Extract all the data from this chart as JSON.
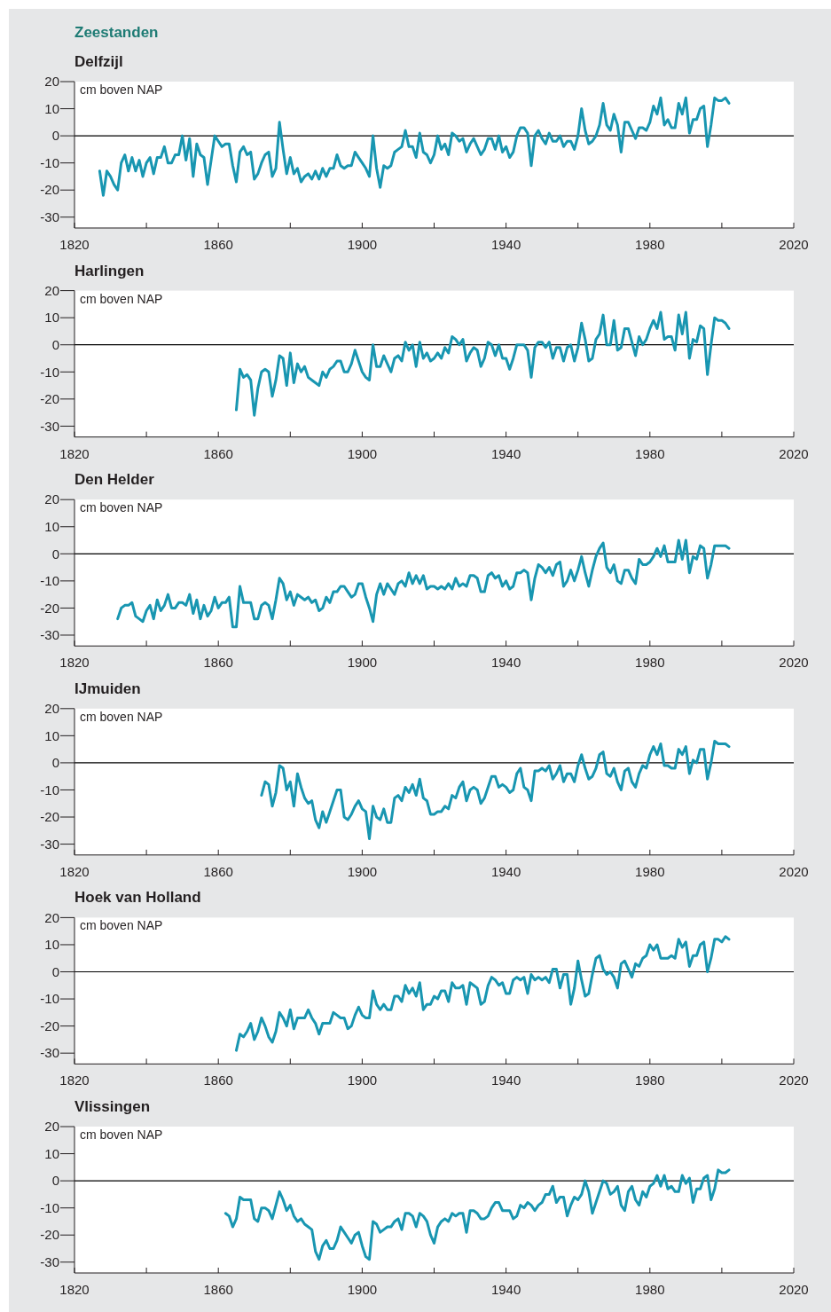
{
  "chart_data": [
    {
      "type": "line",
      "title": "Delfzijl",
      "annotations": [
        "Zeestanden"
      ],
      "ylabel": "cm boven NAP",
      "color": "#1896b1",
      "xlim": [
        1820,
        2020
      ],
      "ylim": [
        -34,
        20
      ],
      "yticks": [
        -30,
        -20,
        -10,
        0,
        10,
        20
      ],
      "xticks": [
        1820,
        {
          "value": 1840,
          "label": null
        },
        1860,
        {
          "value": 1880,
          "label": null
        },
        1900,
        {
          "value": 1920,
          "label": null
        },
        1940,
        {
          "value": 1960,
          "label": null
        },
        1980,
        {
          "value": 2000,
          "label": null
        },
        2020
      ],
      "ref_lines": [
        {
          "axis": "y",
          "value": 0,
          "color": "#000000"
        }
      ],
      "grid": false,
      "legend": false,
      "x": [
        1827,
        1828,
        1829,
        1830,
        1831,
        1832,
        1833,
        1834,
        1835,
        1836,
        1837,
        1838,
        1839,
        1840,
        1841,
        1842,
        1843,
        1844,
        1845,
        1846,
        1847,
        1848,
        1849,
        1850,
        1851,
        1852,
        1853,
        1854,
        1855,
        1856,
        1857,
        1858,
        1859,
        1860,
        1861,
        1862,
        1863,
        1864,
        1865,
        1866,
        1867,
        1868,
        1869,
        1870,
        1871,
        1872,
        1873,
        1874,
        1875,
        1876,
        1877,
        1878,
        1879,
        1880,
        1881,
        1882,
        1883,
        1884,
        1885,
        1886,
        1887,
        1888,
        1889,
        1890,
        1891,
        1892,
        1893,
        1894,
        1895,
        1896,
        1897,
        1898,
        1899,
        1900,
        1901,
        1902,
        1903,
        1904,
        1905,
        1906,
        1907,
        1908,
        1909,
        1910,
        1911,
        1912,
        1913,
        1914,
        1915,
        1916,
        1917,
        1918,
        1919,
        1920,
        1921,
        1922,
        1923,
        1924,
        1925,
        1926,
        1927,
        1928,
        1929,
        1930,
        1931,
        1932,
        1933,
        1934,
        1935,
        1936,
        1937,
        1938,
        1939,
        1940,
        1941,
        1942,
        1943,
        1944,
        1945,
        1946,
        1947,
        1948,
        1949,
        1950,
        1951,
        1952,
        1953,
        1954,
        1955,
        1956,
        1957,
        1958,
        1959,
        1960,
        1961,
        1962,
        1963,
        1964,
        1965,
        1966,
        1967,
        1968,
        1969,
        1970,
        1971,
        1972,
        1973,
        1974,
        1975,
        1976,
        1977,
        1978,
        1979,
        1980,
        1981,
        1982,
        1983,
        1984,
        1985,
        1986,
        1987,
        1988,
        1989,
        1990,
        1991,
        1992,
        1993,
        1994,
        1995,
        1996,
        1997,
        1998,
        1999,
        2000,
        2001,
        2002
      ],
      "values": [
        -13,
        -22,
        -13,
        -15,
        -18,
        -20,
        -10,
        -7,
        -13,
        -8,
        -13,
        -9,
        -15,
        -10,
        -8,
        -14,
        -8,
        -8,
        -4,
        -10,
        -10,
        -7,
        -7,
        0,
        -9,
        -1,
        -15,
        -3,
        -7,
        -8,
        -18,
        -9,
        0,
        -2,
        -4,
        -3,
        -3,
        -11,
        -17,
        -6,
        -4,
        -7,
        -6,
        -16,
        -14,
        -10,
        -7,
        -6,
        -15,
        -12,
        5,
        -5,
        -14,
        -8,
        -14,
        -12,
        -17,
        -15,
        -14,
        -16,
        -13,
        -16,
        -12,
        -15,
        -12,
        -12,
        -7,
        -11,
        -12,
        -11,
        -11,
        -6,
        -8,
        -10,
        -12,
        -15,
        0,
        -12,
        -19,
        -11,
        -12,
        -11,
        -6,
        -5,
        -4,
        2,
        -4,
        -4,
        -8,
        1,
        -6,
        -7,
        -10,
        -7,
        0,
        -5,
        -3,
        -7,
        1,
        0,
        -2,
        -1,
        -6,
        -3,
        -1,
        -4,
        -7,
        -5,
        -1,
        -1,
        -5,
        0,
        -6,
        -4,
        -8,
        -6,
        0,
        3,
        3,
        1,
        -11,
        0,
        2,
        -1,
        -3,
        1,
        -2,
        -2,
        0,
        -4,
        -2,
        -2,
        -5,
        0,
        10,
        2,
        -3,
        -2,
        0,
        4,
        12,
        4,
        2,
        8,
        4,
        -6,
        5,
        5,
        2,
        -1,
        3,
        3,
        2,
        5,
        11,
        8,
        14,
        4,
        6,
        3,
        3,
        12,
        8,
        14,
        1,
        6,
        6,
        10,
        11,
        -4,
        4,
        14,
        13,
        13,
        14,
        12
      ]
    },
    {
      "type": "line",
      "title": "Harlingen",
      "ylabel": "cm boven NAP",
      "color": "#1896b1",
      "xlim": [
        1820,
        2020
      ],
      "ylim": [
        -34,
        20
      ],
      "yticks": [
        -30,
        -20,
        -10,
        0,
        10,
        20
      ],
      "xticks": [
        1820,
        {
          "value": 1840,
          "label": null
        },
        1860,
        {
          "value": 1880,
          "label": null
        },
        1900,
        {
          "value": 1920,
          "label": null
        },
        1940,
        {
          "value": 1960,
          "label": null
        },
        1980,
        {
          "value": 2000,
          "label": null
        },
        2020
      ],
      "ref_lines": [
        {
          "axis": "y",
          "value": 0,
          "color": "#000000"
        }
      ],
      "grid": false,
      "legend": false,
      "x": [
        1865,
        1866,
        1867,
        1868,
        1869,
        1870,
        1871,
        1872,
        1873,
        1874,
        1875,
        1876,
        1877,
        1878,
        1879,
        1880,
        1881,
        1882,
        1883,
        1884,
        1885,
        1886,
        1887,
        1888,
        1889,
        1890,
        1891,
        1892,
        1893,
        1894,
        1895,
        1896,
        1897,
        1898,
        1899,
        1900,
        1901,
        1902,
        1903,
        1904,
        1905,
        1906,
        1907,
        1908,
        1909,
        1910,
        1911,
        1912,
        1913,
        1914,
        1915,
        1916,
        1917,
        1918,
        1919,
        1920,
        1921,
        1922,
        1923,
        1924,
        1925,
        1926,
        1927,
        1928,
        1929,
        1930,
        1931,
        1932,
        1933,
        1934,
        1935,
        1936,
        1937,
        1938,
        1939,
        1940,
        1941,
        1942,
        1943,
        1944,
        1945,
        1946,
        1947,
        1948,
        1949,
        1950,
        1951,
        1952,
        1953,
        1954,
        1955,
        1956,
        1957,
        1958,
        1959,
        1960,
        1961,
        1962,
        1963,
        1964,
        1965,
        1966,
        1967,
        1968,
        1969,
        1970,
        1971,
        1972,
        1973,
        1974,
        1975,
        1976,
        1977,
        1978,
        1979,
        1980,
        1981,
        1982,
        1983,
        1984,
        1985,
        1986,
        1987,
        1988,
        1989,
        1990,
        1991,
        1992,
        1993,
        1994,
        1995,
        1996,
        1997,
        1998,
        1999,
        2000,
        2001,
        2002
      ],
      "values": [
        -24,
        -9,
        -12,
        -11,
        -13,
        -26,
        -16,
        -10,
        -9,
        -10,
        -19,
        -13,
        -4,
        -5,
        -15,
        -3,
        -14,
        -7,
        -10,
        -8,
        -12,
        -13,
        -14,
        -15,
        -10,
        -12,
        -9,
        -8,
        -6,
        -6,
        -10,
        -10,
        -7,
        -2,
        -6,
        -10,
        -12,
        -13,
        0,
        -8,
        -8,
        -4,
        -7,
        -10,
        -5,
        -4,
        -6,
        1,
        -2,
        0,
        -8,
        1,
        -5,
        -3,
        -6,
        -5,
        -3,
        -5,
        -1,
        -3,
        3,
        2,
        0,
        2,
        -6,
        -3,
        -1,
        -2,
        -8,
        -5,
        1,
        0,
        -4,
        0,
        -5,
        -5,
        -9,
        -5,
        0,
        0,
        0,
        -2,
        -12,
        -1,
        1,
        1,
        -1,
        1,
        -5,
        -1,
        -1,
        -6,
        -1,
        0,
        -6,
        -1,
        8,
        2,
        -6,
        -5,
        2,
        4,
        11,
        0,
        0,
        9,
        -2,
        -1,
        6,
        6,
        1,
        -4,
        3,
        0,
        2,
        6,
        9,
        6,
        12,
        2,
        3,
        3,
        -2,
        11,
        4,
        12,
        -5,
        2,
        1,
        7,
        6,
        -11,
        0,
        10,
        9,
        9,
        8,
        6
      ]
    },
    {
      "type": "line",
      "title": "Den Helder",
      "ylabel": "cm boven NAP",
      "color": "#1896b1",
      "xlim": [
        1820,
        2020
      ],
      "ylim": [
        -34,
        20
      ],
      "yticks": [
        -30,
        -20,
        -10,
        0,
        10,
        20
      ],
      "xticks": [
        1820,
        {
          "value": 1840,
          "label": null
        },
        1860,
        {
          "value": 1880,
          "label": null
        },
        1900,
        {
          "value": 1920,
          "label": null
        },
        1940,
        {
          "value": 1960,
          "label": null
        },
        1980,
        {
          "value": 2000,
          "label": null
        },
        2020
      ],
      "ref_lines": [
        {
          "axis": "y",
          "value": 0,
          "color": "#000000"
        }
      ],
      "grid": false,
      "legend": false,
      "x": [
        1832,
        1833,
        1834,
        1835,
        1836,
        1837,
        1838,
        1839,
        1840,
        1841,
        1842,
        1843,
        1844,
        1845,
        1846,
        1847,
        1848,
        1849,
        1850,
        1851,
        1852,
        1853,
        1854,
        1855,
        1856,
        1857,
        1858,
        1859,
        1860,
        1861,
        1862,
        1863,
        1864,
        1865,
        1866,
        1867,
        1868,
        1869,
        1870,
        1871,
        1872,
        1873,
        1874,
        1875,
        1876,
        1877,
        1878,
        1879,
        1880,
        1881,
        1882,
        1883,
        1884,
        1885,
        1886,
        1887,
        1888,
        1889,
        1890,
        1891,
        1892,
        1893,
        1894,
        1895,
        1896,
        1897,
        1898,
        1899,
        1900,
        1901,
        1902,
        1903,
        1904,
        1905,
        1906,
        1907,
        1908,
        1909,
        1910,
        1911,
        1912,
        1913,
        1914,
        1915,
        1916,
        1917,
        1918,
        1919,
        1920,
        1921,
        1922,
        1923,
        1924,
        1925,
        1926,
        1927,
        1928,
        1929,
        1930,
        1931,
        1932,
        1933,
        1934,
        1935,
        1936,
        1937,
        1938,
        1939,
        1940,
        1941,
        1942,
        1943,
        1944,
        1945,
        1946,
        1947,
        1948,
        1949,
        1950,
        1951,
        1952,
        1953,
        1954,
        1955,
        1956,
        1957,
        1958,
        1959,
        1960,
        1961,
        1962,
        1963,
        1964,
        1965,
        1966,
        1967,
        1968,
        1969,
        1970,
        1971,
        1972,
        1973,
        1974,
        1975,
        1976,
        1977,
        1978,
        1979,
        1980,
        1981,
        1982,
        1983,
        1984,
        1985,
        1986,
        1987,
        1988,
        1989,
        1990,
        1991,
        1992,
        1993,
        1994,
        1995,
        1996,
        1997,
        1998,
        1999,
        2000,
        2001,
        2002
      ],
      "values": [
        -24,
        -20,
        -19,
        -19,
        -18,
        -23,
        -24,
        -25,
        -21,
        -19,
        -24,
        -17,
        -21,
        -19,
        -15,
        -20,
        -20,
        -18,
        -18,
        -19,
        -15,
        -22,
        -17,
        -24,
        -19,
        -23,
        -21,
        -16,
        -20,
        -18,
        -18,
        -16,
        -27,
        -27,
        -12,
        -18,
        -18,
        -18,
        -24,
        -24,
        -19,
        -18,
        -19,
        -24,
        -17,
        -9,
        -11,
        -17,
        -14,
        -19,
        -15,
        -16,
        -17,
        -16,
        -18,
        -17,
        -21,
        -20,
        -16,
        -18,
        -14,
        -14,
        -12,
        -12,
        -14,
        -16,
        -15,
        -11,
        -11,
        -16,
        -20,
        -25,
        -15,
        -11,
        -15,
        -11,
        -13,
        -15,
        -11,
        -10,
        -12,
        -7,
        -11,
        -8,
        -11,
        -8,
        -13,
        -12,
        -12,
        -13,
        -12,
        -13,
        -11,
        -13,
        -9,
        -12,
        -11,
        -12,
        -8,
        -8,
        -9,
        -14,
        -14,
        -8,
        -7,
        -9,
        -8,
        -12,
        -10,
        -13,
        -12,
        -7,
        -7,
        -6,
        -7,
        -17,
        -9,
        -4,
        -5,
        -7,
        -5,
        -8,
        -4,
        -3,
        -12,
        -10,
        -6,
        -10,
        -6,
        -1,
        -7,
        -12,
        -6,
        -1,
        2,
        4,
        -5,
        -7,
        -4,
        -10,
        -11,
        -6,
        -6,
        -9,
        -11,
        -2,
        -4,
        -4,
        -3,
        -1,
        2,
        -1,
        3,
        -3,
        -3,
        -3,
        5,
        -2,
        5,
        -7,
        -1,
        -2,
        3,
        2,
        -9,
        -4,
        3,
        3,
        3,
        3,
        2
      ]
    },
    {
      "type": "line",
      "title": "IJmuiden",
      "ylabel": "cm boven NAP",
      "color": "#1896b1",
      "xlim": [
        1820,
        2020
      ],
      "ylim": [
        -34,
        20
      ],
      "yticks": [
        -30,
        -20,
        -10,
        0,
        10,
        20
      ],
      "xticks": [
        1820,
        {
          "value": 1840,
          "label": null
        },
        1860,
        {
          "value": 1880,
          "label": null
        },
        1900,
        {
          "value": 1920,
          "label": null
        },
        1940,
        {
          "value": 1960,
          "label": null
        },
        1980,
        {
          "value": 2000,
          "label": null
        },
        2020
      ],
      "ref_lines": [
        {
          "axis": "y",
          "value": 0,
          "color": "#000000"
        }
      ],
      "grid": false,
      "legend": false,
      "x": [
        1872,
        1873,
        1874,
        1875,
        1876,
        1877,
        1878,
        1879,
        1880,
        1881,
        1882,
        1883,
        1884,
        1885,
        1886,
        1887,
        1888,
        1889,
        1890,
        1891,
        1892,
        1893,
        1894,
        1895,
        1896,
        1897,
        1898,
        1899,
        1900,
        1901,
        1902,
        1903,
        1904,
        1905,
        1906,
        1907,
        1908,
        1909,
        1910,
        1911,
        1912,
        1913,
        1914,
        1915,
        1916,
        1917,
        1918,
        1919,
        1920,
        1921,
        1922,
        1923,
        1924,
        1925,
        1926,
        1927,
        1928,
        1929,
        1930,
        1931,
        1932,
        1933,
        1934,
        1935,
        1936,
        1937,
        1938,
        1939,
        1940,
        1941,
        1942,
        1943,
        1944,
        1945,
        1946,
        1947,
        1948,
        1949,
        1950,
        1951,
        1952,
        1953,
        1954,
        1955,
        1956,
        1957,
        1958,
        1959,
        1960,
        1961,
        1962,
        1963,
        1964,
        1965,
        1966,
        1967,
        1968,
        1969,
        1970,
        1971,
        1972,
        1973,
        1974,
        1975,
        1976,
        1977,
        1978,
        1979,
        1980,
        1981,
        1982,
        1983,
        1984,
        1985,
        1986,
        1987,
        1988,
        1989,
        1990,
        1991,
        1992,
        1993,
        1994,
        1995,
        1996,
        1997,
        1998,
        1999,
        2000,
        2001,
        2002
      ],
      "values": [
        -12,
        -7,
        -8,
        -16,
        -11,
        -1,
        -2,
        -10,
        -7,
        -16,
        -4,
        -9,
        -13,
        -15,
        -14,
        -21,
        -24,
        -18,
        -22,
        -18,
        -14,
        -10,
        -10,
        -20,
        -21,
        -19,
        -16,
        -14,
        -17,
        -18,
        -28,
        -16,
        -20,
        -21,
        -17,
        -22,
        -22,
        -13,
        -12,
        -14,
        -9,
        -11,
        -8,
        -12,
        -6,
        -13,
        -14,
        -19,
        -19,
        -18,
        -18,
        -16,
        -17,
        -12,
        -13,
        -9,
        -7,
        -14,
        -10,
        -9,
        -10,
        -15,
        -13,
        -9,
        -5,
        -5,
        -9,
        -8,
        -9,
        -11,
        -10,
        -4,
        -2,
        -9,
        -10,
        -14,
        -3,
        -3,
        -2,
        -3,
        -1,
        -6,
        -4,
        -1,
        -7,
        -4,
        -4,
        -7,
        -1,
        3,
        -2,
        -6,
        -5,
        -2,
        3,
        4,
        -4,
        -5,
        -2,
        -7,
        -10,
        -3,
        -2,
        -7,
        -9,
        -4,
        -1,
        -2,
        3,
        6,
        3,
        7,
        -1,
        -1,
        -2,
        -2,
        5,
        3,
        6,
        -4,
        1,
        0,
        5,
        5,
        -6,
        0,
        8,
        7,
        7,
        7,
        6
      ]
    },
    {
      "type": "line",
      "title": "Hoek van Holland",
      "ylabel": "cm boven NAP",
      "color": "#1896b1",
      "xlim": [
        1820,
        2020
      ],
      "ylim": [
        -34,
        20
      ],
      "yticks": [
        -30,
        -20,
        -10,
        0,
        10,
        20
      ],
      "xticks": [
        1820,
        {
          "value": 1840,
          "label": null
        },
        1860,
        {
          "value": 1880,
          "label": null
        },
        1900,
        {
          "value": 1920,
          "label": null
        },
        1940,
        {
          "value": 1960,
          "label": null
        },
        1980,
        {
          "value": 2000,
          "label": null
        },
        2020
      ],
      "ref_lines": [
        {
          "axis": "y",
          "value": 0,
          "color": "#000000"
        }
      ],
      "grid": false,
      "legend": false,
      "x": [
        1865,
        1866,
        1867,
        1868,
        1869,
        1870,
        1871,
        1872,
        1873,
        1874,
        1875,
        1876,
        1877,
        1878,
        1879,
        1880,
        1881,
        1882,
        1883,
        1884,
        1885,
        1886,
        1887,
        1888,
        1889,
        1890,
        1891,
        1892,
        1893,
        1894,
        1895,
        1896,
        1897,
        1898,
        1899,
        1900,
        1901,
        1902,
        1903,
        1904,
        1905,
        1906,
        1907,
        1908,
        1909,
        1910,
        1911,
        1912,
        1913,
        1914,
        1915,
        1916,
        1917,
        1918,
        1919,
        1920,
        1921,
        1922,
        1923,
        1924,
        1925,
        1926,
        1927,
        1928,
        1929,
        1930,
        1931,
        1932,
        1933,
        1934,
        1935,
        1936,
        1937,
        1938,
        1939,
        1940,
        1941,
        1942,
        1943,
        1944,
        1945,
        1946,
        1947,
        1948,
        1949,
        1950,
        1951,
        1952,
        1953,
        1954,
        1955,
        1956,
        1957,
        1958,
        1959,
        1960,
        1961,
        1962,
        1963,
        1964,
        1965,
        1966,
        1967,
        1968,
        1969,
        1970,
        1971,
        1972,
        1973,
        1974,
        1975,
        1976,
        1977,
        1978,
        1979,
        1980,
        1981,
        1982,
        1983,
        1984,
        1985,
        1986,
        1987,
        1988,
        1989,
        1990,
        1991,
        1992,
        1993,
        1994,
        1995,
        1996,
        1997,
        1998,
        1999,
        2000,
        2001,
        2002
      ],
      "values": [
        -29,
        -23,
        -24,
        -22,
        -19,
        -25,
        -22,
        -17,
        -20,
        -24,
        -26,
        -22,
        -15,
        -17,
        -20,
        -14,
        -21,
        -17,
        -17,
        -17,
        -14,
        -17,
        -19,
        -23,
        -19,
        -19,
        -19,
        -15,
        -16,
        -17,
        -17,
        -21,
        -20,
        -16,
        -13,
        -16,
        -17,
        -17,
        -7,
        -12,
        -14,
        -12,
        -14,
        -14,
        -9,
        -9,
        -11,
        -5,
        -8,
        -6,
        -9,
        -4,
        -14,
        -12,
        -12,
        -9,
        -10,
        -7,
        -7,
        -11,
        -4,
        -6,
        -6,
        -5,
        -12,
        -4,
        -5,
        -6,
        -12,
        -11,
        -5,
        -2,
        -3,
        -5,
        -4,
        -8,
        -8,
        -3,
        -2,
        -3,
        -2,
        -8,
        -1,
        -3,
        -2,
        -3,
        -2,
        -4,
        1,
        1,
        -6,
        -1,
        -1,
        -12,
        -6,
        4,
        -3,
        -9,
        -8,
        -1,
        5,
        6,
        1,
        -1,
        0,
        -2,
        -6,
        3,
        4,
        1,
        -2,
        3,
        2,
        5,
        6,
        10,
        8,
        10,
        5,
        5,
        5,
        6,
        5,
        12,
        9,
        11,
        2,
        6,
        6,
        10,
        11,
        0,
        5,
        12,
        12,
        11,
        13,
        12
      ]
    },
    {
      "type": "line",
      "title": "Vlissingen",
      "ylabel": "cm boven NAP",
      "color": "#1896b1",
      "xlim": [
        1820,
        2020
      ],
      "ylim": [
        -34,
        20
      ],
      "yticks": [
        -30,
        -20,
        -10,
        0,
        10,
        20
      ],
      "xticks": [
        1820,
        {
          "value": 1840,
          "label": null
        },
        1860,
        {
          "value": 1880,
          "label": null
        },
        1900,
        {
          "value": 1920,
          "label": null
        },
        1940,
        {
          "value": 1960,
          "label": null
        },
        1980,
        {
          "value": 2000,
          "label": null
        },
        2020
      ],
      "ref_lines": [
        {
          "axis": "y",
          "value": 0,
          "color": "#000000"
        }
      ],
      "grid": false,
      "legend": false,
      "x": [
        1862,
        1863,
        1864,
        1865,
        1866,
        1867,
        1868,
        1869,
        1870,
        1871,
        1872,
        1873,
        1874,
        1875,
        1876,
        1877,
        1878,
        1879,
        1880,
        1881,
        1882,
        1883,
        1884,
        1885,
        1886,
        1887,
        1888,
        1889,
        1890,
        1891,
        1892,
        1893,
        1894,
        1895,
        1896,
        1897,
        1898,
        1899,
        1900,
        1901,
        1902,
        1903,
        1904,
        1905,
        1906,
        1907,
        1908,
        1909,
        1910,
        1911,
        1912,
        1913,
        1914,
        1915,
        1916,
        1917,
        1918,
        1919,
        1920,
        1921,
        1922,
        1923,
        1924,
        1925,
        1926,
        1927,
        1928,
        1929,
        1930,
        1931,
        1932,
        1933,
        1934,
        1935,
        1936,
        1937,
        1938,
        1939,
        1940,
        1941,
        1942,
        1943,
        1944,
        1945,
        1946,
        1947,
        1948,
        1949,
        1950,
        1951,
        1952,
        1953,
        1954,
        1955,
        1956,
        1957,
        1958,
        1959,
        1960,
        1961,
        1962,
        1963,
        1964,
        1965,
        1966,
        1967,
        1968,
        1969,
        1970,
        1971,
        1972,
        1973,
        1974,
        1975,
        1976,
        1977,
        1978,
        1979,
        1980,
        1981,
        1982,
        1983,
        1984,
        1985,
        1986,
        1987,
        1988,
        1989,
        1990,
        1991,
        1992,
        1993,
        1994,
        1995,
        1996,
        1997,
        1998,
        1999,
        2000,
        2001,
        2002
      ],
      "values": [
        -12,
        -13,
        -17,
        -14,
        -6,
        -7,
        -7,
        -7,
        -14,
        -15,
        -10,
        -10,
        -11,
        -14,
        -9,
        -4,
        -7,
        -11,
        -9,
        -13,
        -15,
        -14,
        -16,
        -17,
        -18,
        -26,
        -29,
        -24,
        -22,
        -25,
        -25,
        -22,
        -17,
        -19,
        -21,
        -23,
        -20,
        -19,
        -24,
        -28,
        -29,
        -15,
        -16,
        -19,
        -18,
        -17,
        -17,
        -15,
        -14,
        -18,
        -12,
        -12,
        -13,
        -17,
        -12,
        -13,
        -15,
        -20,
        -23,
        -17,
        -15,
        -14,
        -15,
        -12,
        -13,
        -12,
        -12,
        -19,
        -11,
        -11,
        -12,
        -14,
        -14,
        -13,
        -10,
        -8,
        -8,
        -11,
        -11,
        -11,
        -14,
        -13,
        -9,
        -10,
        -8,
        -9,
        -11,
        -9,
        -8,
        -5,
        -5,
        -2,
        -8,
        -6,
        -6,
        -13,
        -9,
        -6,
        -7,
        -5,
        0,
        -4,
        -12,
        -8,
        -4,
        0,
        -1,
        -5,
        -4,
        -2,
        -9,
        -11,
        -4,
        -2,
        -7,
        -9,
        -4,
        -6,
        -2,
        -1,
        2,
        -2,
        2,
        -3,
        -2,
        -4,
        -4,
        2,
        -1,
        1,
        -8,
        -3,
        -3,
        1,
        2,
        -7,
        -3,
        4,
        3,
        3,
        4
      ]
    }
  ]
}
